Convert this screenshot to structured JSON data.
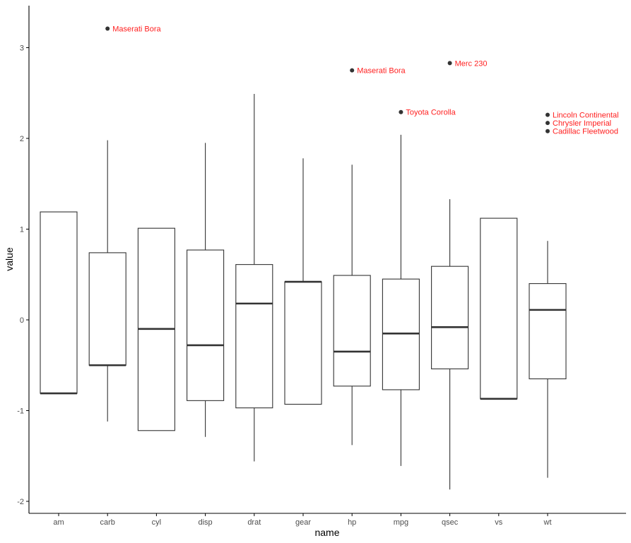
{
  "chart_data": {
    "type": "boxplot",
    "xlabel": "name",
    "ylabel": "value",
    "ylim": [
      -2.15,
      3.5
    ],
    "y_ticks": [
      -2,
      -1,
      0,
      1,
      2,
      3
    ],
    "label_color": "#ff2020",
    "categories": [
      "am",
      "carb",
      "cyl",
      "disp",
      "drat",
      "gear",
      "hp",
      "mpg",
      "qsec",
      "vs",
      "wt"
    ],
    "boxes": [
      {
        "name": "am",
        "lower": -0.81,
        "q1": -0.81,
        "median": -0.81,
        "q3": 1.19,
        "upper": 1.19
      },
      {
        "name": "carb",
        "lower": -1.12,
        "q1": -0.5,
        "median": -0.5,
        "q3": 0.74,
        "upper": 1.98
      },
      {
        "name": "cyl",
        "lower": -1.22,
        "q1": -1.22,
        "median": -0.1,
        "q3": 1.01,
        "upper": 1.01
      },
      {
        "name": "disp",
        "lower": -1.29,
        "q1": -0.89,
        "median": -0.28,
        "q3": 0.77,
        "upper": 1.95
      },
      {
        "name": "drat",
        "lower": -1.56,
        "q1": -0.97,
        "median": 0.18,
        "q3": 0.61,
        "upper": 2.49
      },
      {
        "name": "gear",
        "lower": -0.93,
        "q1": -0.93,
        "median": 0.42,
        "q3": 0.42,
        "upper": 1.78
      },
      {
        "name": "hp",
        "lower": -1.38,
        "q1": -0.73,
        "median": -0.35,
        "q3": 0.49,
        "upper": 1.71
      },
      {
        "name": "mpg",
        "lower": -1.61,
        "q1": -0.77,
        "median": -0.15,
        "q3": 0.45,
        "upper": 2.04
      },
      {
        "name": "qsec",
        "lower": -1.87,
        "q1": -0.54,
        "median": -0.08,
        "q3": 0.59,
        "upper": 1.33
      },
      {
        "name": "vs",
        "lower": -0.87,
        "q1": -0.87,
        "median": -0.87,
        "q3": 1.12,
        "upper": 1.12
      },
      {
        "name": "wt",
        "lower": -1.74,
        "q1": -0.65,
        "median": 0.11,
        "q3": 0.4,
        "upper": 0.87
      }
    ],
    "outliers": [
      {
        "category": "carb",
        "value": 3.21,
        "label": "Maserati Bora"
      },
      {
        "category": "hp",
        "value": 2.75,
        "label": "Maserati Bora"
      },
      {
        "category": "mpg",
        "value": 2.29,
        "label": "Toyota Corolla"
      },
      {
        "category": "qsec",
        "value": 2.83,
        "label": "Merc 230"
      },
      {
        "category": "wt",
        "value": 2.26,
        "label": "Lincoln Continental"
      },
      {
        "category": "wt",
        "value": 2.17,
        "label": "Chrysler Imperial"
      },
      {
        "category": "wt",
        "value": 2.08,
        "label": "Cadillac Fleetwood"
      }
    ]
  }
}
